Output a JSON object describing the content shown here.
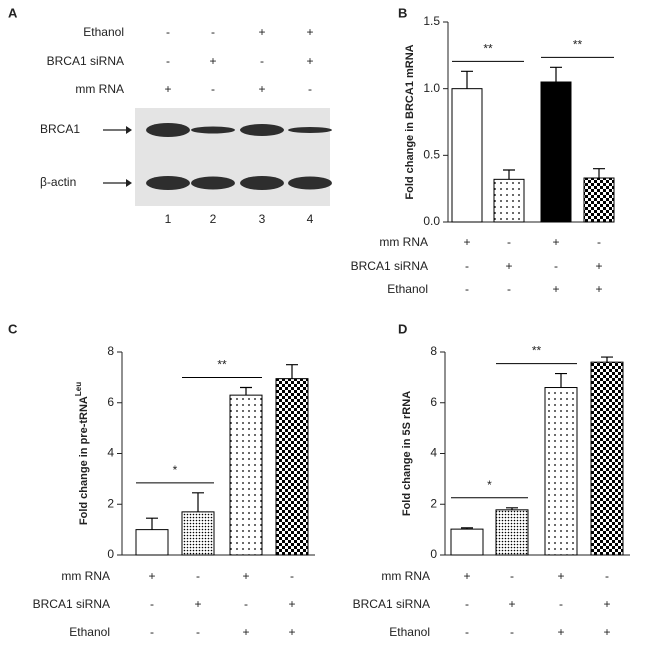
{
  "blot": {
    "panel": "A",
    "conditions": [
      {
        "label": "Ethanol",
        "signs": [
          "-",
          "-",
          "+",
          "+"
        ]
      },
      {
        "label": "BRCA1 siRNA",
        "signs": [
          "-",
          "+",
          "-",
          "+"
        ]
      },
      {
        "label": "mm RNA",
        "signs": [
          "+",
          "-",
          "+",
          "-"
        ]
      }
    ],
    "bands": [
      "BRCA1",
      "β-actin"
    ],
    "lanes": [
      "1",
      "2",
      "3",
      "4"
    ]
  },
  "chart_data": [
    {
      "type": "bar",
      "panel": "B",
      "ylabel": "Fold change in BRCA1 mRNA",
      "values": [
        1.0,
        0.32,
        1.05,
        0.33
      ],
      "errors": [
        0.13,
        0.07,
        0.11,
        0.07
      ],
      "fills": [
        "white",
        "dots",
        "black",
        "checker"
      ],
      "ylim": [
        0,
        1.5
      ],
      "yticks": [
        {
          "value": 0,
          "label": "0.0"
        },
        0.5,
        {
          "value": 1,
          "label": "1.0"
        },
        1.5
      ],
      "conditions": [
        {
          "label": "mm RNA",
          "signs": [
            "+",
            "-",
            "+",
            "-"
          ]
        },
        {
          "label": "BRCA1 siRNA",
          "signs": [
            "-",
            "+",
            "-",
            "+"
          ]
        },
        {
          "label": "Ethanol",
          "signs": [
            "-",
            "-",
            "+",
            "+"
          ]
        }
      ],
      "annotations": [
        {
          "text": "**",
          "from": 0,
          "to": 1
        },
        {
          "text": "**",
          "from": 2,
          "to": 3
        }
      ]
    },
    {
      "type": "bar",
      "panel": "C",
      "ylabel": "Fold change in pre-tRNA",
      "ylabel_sup": "Leu",
      "values": [
        1.0,
        1.7,
        6.3,
        6.95
      ],
      "errors": [
        0.45,
        0.75,
        0.3,
        0.55
      ],
      "fills": [
        "white",
        "dense",
        "dots",
        "checker"
      ],
      "ylim": [
        0,
        8
      ],
      "yticks": [
        0,
        2,
        4,
        6,
        8
      ],
      "conditions": [
        {
          "label": "mm RNA",
          "signs": [
            "+",
            "-",
            "+",
            "-"
          ]
        },
        {
          "label": "BRCA1 siRNA",
          "signs": [
            "-",
            "+",
            "-",
            "+"
          ]
        },
        {
          "label": "Ethanol",
          "signs": [
            "-",
            "-",
            "+",
            "+"
          ]
        }
      ],
      "annotations": [
        {
          "text": "*",
          "from": 0,
          "to": 1
        },
        {
          "text": "**",
          "from": 1,
          "to": 2
        }
      ]
    },
    {
      "type": "bar",
      "panel": "D",
      "ylabel": "Fold change in 5S rRNA",
      "values": [
        1.02,
        1.78,
        6.6,
        7.6
      ],
      "errors": [
        0.05,
        0.08,
        0.55,
        0.2
      ],
      "fills": [
        "white",
        "dense",
        "dots",
        "checker"
      ],
      "ylim": [
        0,
        8
      ],
      "yticks": [
        0,
        2,
        4,
        6,
        8
      ],
      "conditions": [
        {
          "label": "mm RNA",
          "signs": [
            "+",
            "-",
            "+",
            "-"
          ]
        },
        {
          "label": "BRCA1 siRNA",
          "signs": [
            "-",
            "+",
            "-",
            "+"
          ]
        },
        {
          "label": "Ethanol",
          "signs": [
            "-",
            "-",
            "+",
            "+"
          ]
        }
      ],
      "annotations": [
        {
          "text": "*",
          "from": 0,
          "to": 1
        },
        {
          "text": "**",
          "from": 1,
          "to": 2
        }
      ]
    }
  ]
}
